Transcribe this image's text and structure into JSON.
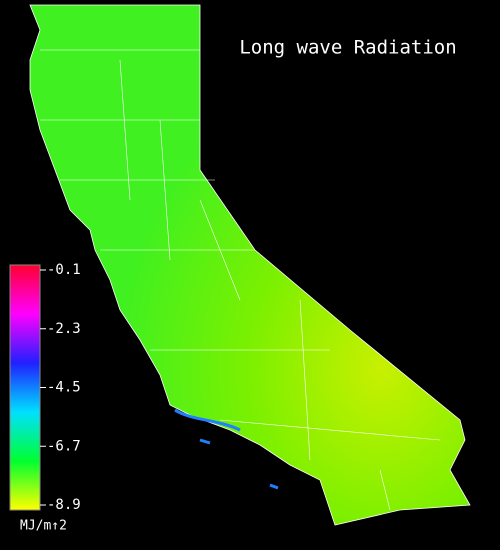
{
  "title": "Long wave Radiation",
  "colorbar": {
    "ticks": [
      -0.1,
      -2.3,
      -4.5,
      -6.7,
      -8.9
    ],
    "colors": [
      "#ff0030",
      "#ff00ff",
      "#2020ff",
      "#00e0ff",
      "#00ff30",
      "#ffff00"
    ],
    "unit": "MJ/m↑2"
  }
}
